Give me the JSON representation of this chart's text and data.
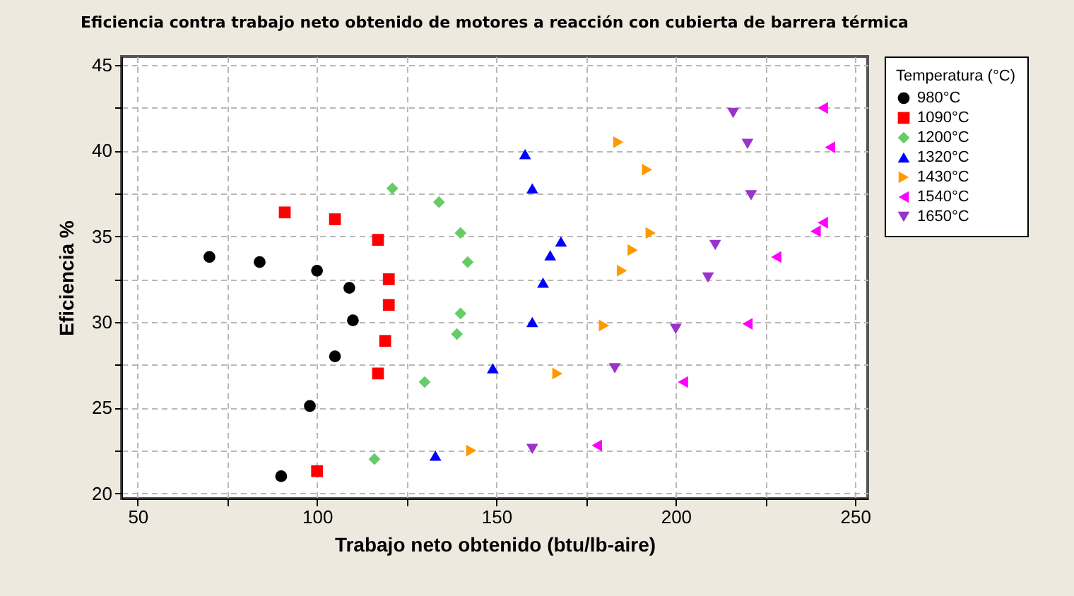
{
  "chart_data": {
    "type": "scatter",
    "title": "Eficiencia contra trabajo neto obtenido de motores a reacción con cubierta de barrera térmica",
    "xlabel": "Trabajo neto obtenido (btu/lb-aire)",
    "ylabel": "Eficiencia %",
    "legend_title": "Temperatura (°C)",
    "legend": "right",
    "grid": true,
    "line_style": "dashed",
    "xlim": [
      45.5,
      253.5
    ],
    "xticks": [
      50,
      {
        "value": 75,
        "label": null
      },
      100,
      {
        "value": 125,
        "label": null
      },
      150,
      {
        "value": 175,
        "label": null
      },
      200,
      {
        "value": 225,
        "label": null
      },
      250
    ],
    "ylim": [
      19.7,
      45.5
    ],
    "yticks": [
      20,
      {
        "value": 22.5,
        "label": null
      },
      25,
      {
        "value": 27.5,
        "label": null
      },
      30,
      {
        "value": 32.5,
        "label": null
      },
      35,
      {
        "value": 37.5,
        "label": null
      },
      40,
      {
        "value": 42.5,
        "label": null
      },
      45
    ],
    "series": [
      {
        "name": "980°C",
        "color": "#000000",
        "marker": "circle",
        "x": [
          70,
          84,
          100,
          109,
          110,
          105,
          98,
          90
        ],
        "values": [
          33.8,
          33.5,
          33.0,
          32.0,
          30.1,
          28.0,
          25.1,
          21.0
        ]
      },
      {
        "name": "1090°C",
        "color": "#ff0000",
        "marker": "square",
        "x": [
          91,
          105,
          117,
          120,
          120,
          119,
          117,
          100
        ],
        "values": [
          36.4,
          36.0,
          34.8,
          32.5,
          31.0,
          28.9,
          27.0,
          21.3
        ]
      },
      {
        "name": "1200°C",
        "color": "#66cc66",
        "marker": "diamond",
        "x": [
          121,
          134,
          140,
          142,
          140,
          139,
          130,
          116
        ],
        "values": [
          37.8,
          37.0,
          35.2,
          33.5,
          30.5,
          29.3,
          26.5,
          22.0
        ]
      },
      {
        "name": "1320°C",
        "color": "#0000ff",
        "marker": "triangle-up",
        "x": [
          158,
          160,
          168,
          165,
          163,
          160,
          149,
          133
        ],
        "values": [
          39.8,
          37.8,
          34.7,
          33.9,
          32.3,
          30.0,
          27.3,
          22.2
        ]
      },
      {
        "name": "1430°C",
        "color": "#ff9900",
        "marker": "triangle-right",
        "x": [
          184,
          192,
          193,
          188,
          185,
          180,
          167,
          143
        ],
        "values": [
          40.5,
          38.9,
          35.2,
          34.2,
          33.0,
          29.8,
          27.0,
          22.5
        ]
      },
      {
        "name": "1540°C",
        "color": "#ff00ff",
        "marker": "triangle-left",
        "x": [
          241,
          243,
          241,
          239,
          228,
          220,
          202,
          178
        ],
        "values": [
          42.5,
          40.2,
          35.8,
          35.3,
          33.8,
          29.9,
          26.5,
          22.8
        ]
      },
      {
        "name": "1650°C",
        "color": "#9933cc",
        "marker": "triangle-down",
        "x": [
          216,
          220,
          221,
          211,
          209,
          200,
          183,
          160
        ],
        "values": [
          42.2,
          40.4,
          37.4,
          34.5,
          32.6,
          29.6,
          27.3,
          22.6
        ]
      }
    ]
  }
}
